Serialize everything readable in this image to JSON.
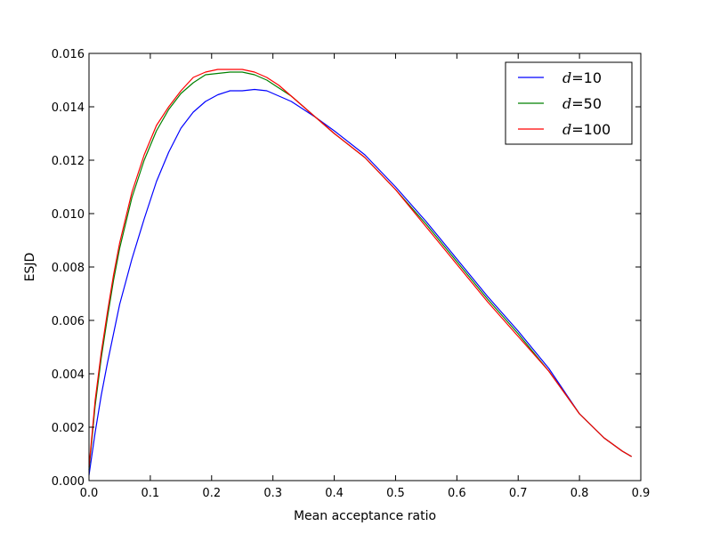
{
  "chart_data": {
    "type": "line",
    "title": "",
    "xlabel": "Mean acceptance ratio",
    "ylabel": "ESJD",
    "xlim": [
      0.0,
      0.9
    ],
    "ylim": [
      0.0,
      0.016
    ],
    "x_ticks": [
      "0.0",
      "0.1",
      "0.2",
      "0.3",
      "0.4",
      "0.5",
      "0.6",
      "0.7",
      "0.8",
      "0.9"
    ],
    "y_ticks": [
      "0.000",
      "0.002",
      "0.004",
      "0.006",
      "0.008",
      "0.010",
      "0.012",
      "0.014",
      "0.016"
    ],
    "grid": false,
    "legend_position": "top-right",
    "series": [
      {
        "name": "d=10",
        "legend_var": "d",
        "legend_eq": "=",
        "legend_num": "10",
        "color": "#0000ff",
        "x": [
          0.0,
          0.01,
          0.02,
          0.03,
          0.04,
          0.05,
          0.07,
          0.09,
          0.11,
          0.13,
          0.15,
          0.17,
          0.19,
          0.21,
          0.23,
          0.25,
          0.27,
          0.29,
          0.31,
          0.33,
          0.35,
          0.37,
          0.4,
          0.45,
          0.5,
          0.55,
          0.6,
          0.65,
          0.7,
          0.75,
          0.8,
          0.84,
          0.87,
          0.885
        ],
        "y": [
          0.0002,
          0.0018,
          0.0032,
          0.0044,
          0.0055,
          0.0066,
          0.0083,
          0.0098,
          0.0112,
          0.0123,
          0.0132,
          0.0138,
          0.0142,
          0.01445,
          0.0146,
          0.0146,
          0.01465,
          0.0146,
          0.0144,
          0.0142,
          0.0139,
          0.0136,
          0.0131,
          0.0122,
          0.011,
          0.0097,
          0.0083,
          0.0069,
          0.0056,
          0.0042,
          0.0025,
          0.0016,
          0.0011,
          0.0009
        ]
      },
      {
        "name": "d=50",
        "legend_var": "d",
        "legend_eq": "=",
        "legend_num": "50",
        "color": "#008000",
        "x": [
          0.0,
          0.01,
          0.02,
          0.03,
          0.04,
          0.05,
          0.07,
          0.09,
          0.11,
          0.13,
          0.15,
          0.17,
          0.19,
          0.21,
          0.23,
          0.25,
          0.27,
          0.29,
          0.31,
          0.33,
          0.35,
          0.37,
          0.4,
          0.45,
          0.5,
          0.55,
          0.6,
          0.65,
          0.7,
          0.75,
          0.8,
          0.84,
          0.87,
          0.885
        ],
        "y": [
          0.0004,
          0.0028,
          0.0046,
          0.0061,
          0.0075,
          0.0087,
          0.0106,
          0.012,
          0.0131,
          0.0139,
          0.0145,
          0.0149,
          0.0152,
          0.01525,
          0.0153,
          0.0153,
          0.0152,
          0.015,
          0.0147,
          0.0144,
          0.014,
          0.0136,
          0.013,
          0.0121,
          0.0109,
          0.0096,
          0.0082,
          0.0068,
          0.0055,
          0.0041,
          0.0025,
          0.0016,
          0.0011,
          0.0009
        ]
      },
      {
        "name": "d=100",
        "legend_var": "d",
        "legend_eq": "=",
        "legend_num": "100",
        "color": "#ff0000",
        "x": [
          0.0,
          0.01,
          0.02,
          0.03,
          0.04,
          0.05,
          0.07,
          0.09,
          0.11,
          0.13,
          0.15,
          0.17,
          0.19,
          0.21,
          0.23,
          0.25,
          0.27,
          0.29,
          0.31,
          0.33,
          0.35,
          0.37,
          0.4,
          0.45,
          0.5,
          0.55,
          0.6,
          0.65,
          0.7,
          0.75,
          0.8,
          0.84,
          0.87,
          0.885
        ],
        "y": [
          0.0005,
          0.003,
          0.0048,
          0.0063,
          0.0077,
          0.0089,
          0.0108,
          0.0122,
          0.0133,
          0.014,
          0.0146,
          0.0151,
          0.0153,
          0.0154,
          0.0154,
          0.0154,
          0.0153,
          0.0151,
          0.0148,
          0.0144,
          0.014,
          0.0136,
          0.013,
          0.0121,
          0.0109,
          0.0095,
          0.0081,
          0.0067,
          0.0054,
          0.0041,
          0.0025,
          0.0016,
          0.0011,
          0.0009
        ]
      }
    ]
  }
}
